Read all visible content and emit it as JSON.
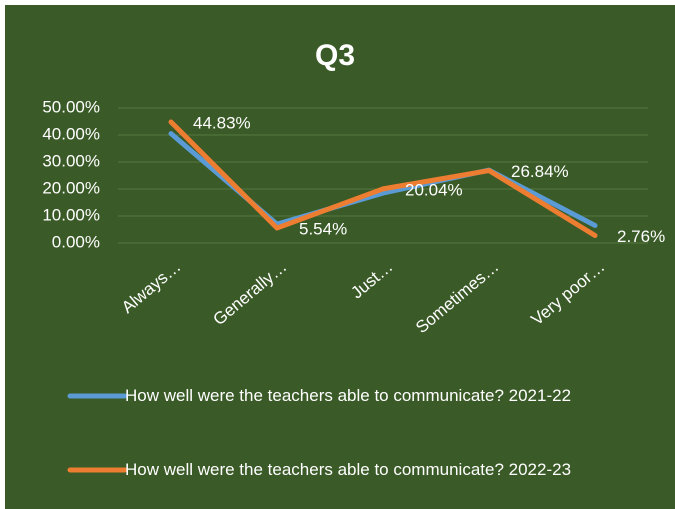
{
  "chart_data": {
    "type": "line",
    "title": "Q3",
    "categories": [
      "Always…",
      "Generally…",
      "Just…",
      "Sometimes…",
      "Very poor…"
    ],
    "series": [
      {
        "name": "How well were the teachers able to communicate? 2021-22",
        "color": "#5b9bd5",
        "values": [
          40.5,
          7,
          18.5,
          27,
          6.5
        ]
      },
      {
        "name": "How well were the teachers able to communicate? 2022-23",
        "color": "#ed7d31",
        "values": [
          44.83,
          5.54,
          20.04,
          26.84,
          2.76
        ],
        "value_labels": [
          "44.83%",
          "5.54%",
          "20.04%",
          "26.84%",
          "2.76%"
        ]
      }
    ],
    "ylim": [
      0,
      50
    ],
    "yticks": [
      {
        "value": 0,
        "label": "0.00%"
      },
      {
        "value": 10,
        "label": "10.00%"
      },
      {
        "value": 20,
        "label": "20.00%"
      },
      {
        "value": 30,
        "label": "30.00%"
      },
      {
        "value": 40,
        "label": "40.00%"
      },
      {
        "value": 50,
        "label": "50.00%"
      }
    ],
    "grid": true
  }
}
